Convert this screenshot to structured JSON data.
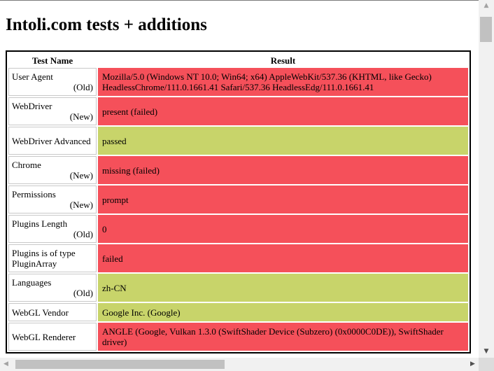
{
  "page": {
    "title": "Intoli.com tests + additions"
  },
  "table": {
    "headers": {
      "test_name": "Test Name",
      "result": "Result"
    },
    "rows": [
      {
        "name": "User Agent",
        "tag": "(Old)",
        "result": "Mozilla/5.0 (Windows NT 10.0; Win64; x64) AppleWebKit/537.36 (KHTML, like Gecko) HeadlessChrome/111.0.1661.41 Safari/537.36 HeadlessEdg/111.0.1661.41",
        "status": "failed"
      },
      {
        "name": "WebDriver",
        "tag": "(New)",
        "result": "present (failed)",
        "status": "failed"
      },
      {
        "name": "WebDriver Advanced",
        "tag": "",
        "result": "passed",
        "status": "passed"
      },
      {
        "name": "Chrome",
        "tag": "(New)",
        "result": "missing (failed)",
        "status": "failed"
      },
      {
        "name": "Permissions",
        "tag": "(New)",
        "result": "prompt",
        "status": "failed"
      },
      {
        "name": "Plugins Length",
        "tag": "(Old)",
        "result": "0",
        "status": "failed"
      },
      {
        "name": "Plugins is of type PluginArray",
        "tag": "",
        "result": "failed",
        "status": "failed"
      },
      {
        "name": "Languages",
        "tag": "(Old)",
        "result": "zh-CN",
        "status": "passed"
      },
      {
        "name": "WebGL Vendor",
        "tag": "",
        "result": "Google Inc. (Google)",
        "status": "passed"
      },
      {
        "name": "WebGL Renderer",
        "tag": "",
        "result": "ANGLE (Google, Vulkan 1.3.0 (SwiftShader Device (Subzero) (0x0000C0DE)), SwiftShader driver)",
        "status": "failed"
      }
    ]
  },
  "colors": {
    "failed": "#f5505a",
    "passed": "#c8d46a"
  },
  "scrollbars": {
    "up_icon": "triangle-up",
    "down_icon": "triangle-down",
    "left_icon": "triangle-left",
    "right_icon": "triangle-right"
  }
}
